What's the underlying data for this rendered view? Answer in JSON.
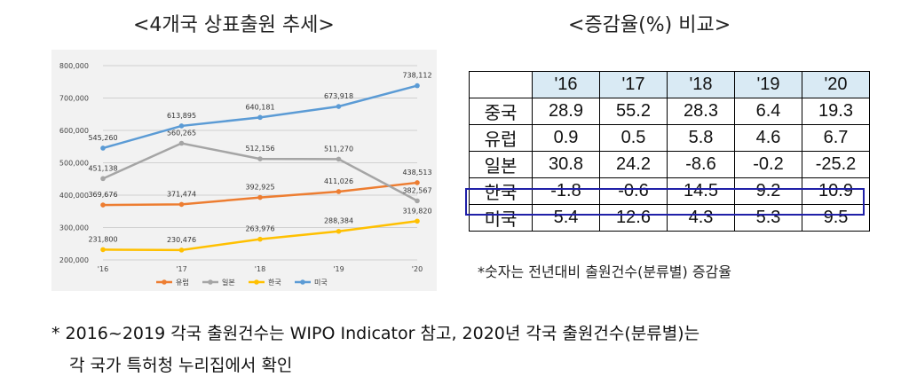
{
  "chart_title": "<4개국 상표출원 추세>",
  "table_title": "<증감율(%) 비교>",
  "chart_data": {
    "type": "line",
    "x": [
      "'16",
      "'17",
      "'18",
      "'19",
      "'20"
    ],
    "ylim": [
      200000,
      800000
    ],
    "yticks": [
      200000,
      300000,
      400000,
      500000,
      600000,
      700000,
      800000
    ],
    "ytick_labels": [
      "200,000",
      "300,000",
      "400,000",
      "500,000",
      "600,000",
      "700,000",
      "800,000"
    ],
    "grid": true,
    "legend_position": "bottom",
    "series": [
      {
        "name": "유럽",
        "color": "#ed7d31",
        "values": [
          369676,
          371474,
          392925,
          411026,
          438513
        ],
        "labels": [
          "369,676",
          "371,474",
          "392,925",
          "411,026",
          "438,513"
        ]
      },
      {
        "name": "일본",
        "color": "#a5a5a5",
        "values": [
          451138,
          560265,
          512156,
          511270,
          382567
        ],
        "labels": [
          "451,138",
          "560,265",
          "512,156",
          "511,270",
          "382,567"
        ]
      },
      {
        "name": "한국",
        "color": "#ffc000",
        "values": [
          231800,
          230476,
          263976,
          288384,
          319820
        ],
        "labels": [
          "231,800",
          "230,476",
          "263,976",
          "288,384",
          "319,820"
        ]
      },
      {
        "name": "미국",
        "color": "#5b9bd5",
        "values": [
          545260,
          613895,
          640181,
          673918,
          738112
        ],
        "labels": [
          "545,260",
          "613,895",
          "640,181",
          "673,918",
          "738,112"
        ]
      }
    ]
  },
  "table": {
    "header": [
      "'16",
      "'17",
      "'18",
      "'19",
      "'20"
    ],
    "rows": [
      {
        "label": "중국",
        "values": [
          "28.9",
          "55.2",
          "28.3",
          "6.4",
          "19.3"
        ]
      },
      {
        "label": "유럽",
        "values": [
          "0.9",
          "0.5",
          "5.8",
          "4.6",
          "6.7"
        ]
      },
      {
        "label": "일본",
        "values": [
          "30.8",
          "24.2",
          "-8.6",
          "-0.2",
          "-25.2"
        ]
      },
      {
        "label": "한국",
        "values": [
          "-1.8",
          "-0.6",
          "14.5",
          "9.2",
          "10.9"
        ]
      },
      {
        "label": "미국",
        "values": [
          "5.4",
          "12.6",
          "4.3",
          "5.3",
          "9.5"
        ]
      }
    ],
    "highlight_row": "한국",
    "highlight_color": "#2020a8",
    "header_bg": "#d9eaf4"
  },
  "table_note": "*숫자는 전년대비 출원건수(분류별) 증감율",
  "footnote": {
    "line1": "* 2016~2019 각국 출원건수는 WIPO Indicator 참고, 2020년 각국 출원건수(분류별)는",
    "line2": "각 국가 특허청 누리집에서 확인"
  }
}
